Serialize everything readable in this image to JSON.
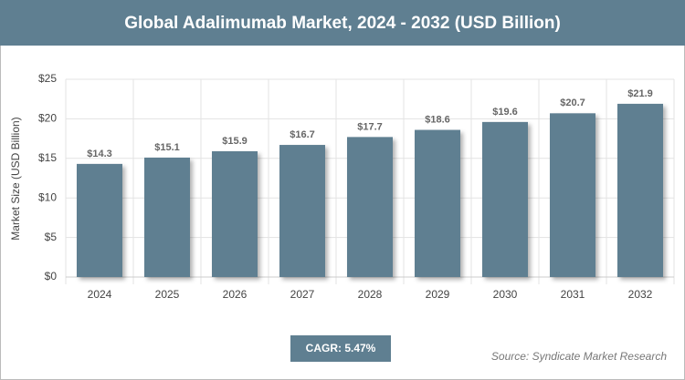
{
  "chart_data": {
    "type": "bar",
    "title": "Global Adalimumab Market, 2024 - 2032 (USD Billion)",
    "y_label": "Market Size (USD Billion)",
    "categories": [
      "2024",
      "2025",
      "2026",
      "2027",
      "2028",
      "2029",
      "2030",
      "2031",
      "2032"
    ],
    "values": [
      14.3,
      15.1,
      15.9,
      16.7,
      17.7,
      18.6,
      19.6,
      20.7,
      21.9
    ],
    "value_labels": [
      "$14.3",
      "$15.1",
      "$15.9",
      "$16.7",
      "$17.7",
      "$18.6",
      "$19.6",
      "$20.7",
      "$21.9"
    ],
    "color": "#5f7f91",
    "ylim": [
      0,
      25
    ],
    "yticks": [
      {
        "value": 0,
        "label": "$0"
      },
      {
        "value": 5,
        "label": "$5"
      },
      {
        "value": 10,
        "label": "$10"
      },
      {
        "value": 15,
        "label": "$15"
      },
      {
        "value": 20,
        "label": "$20"
      },
      {
        "value": 25,
        "label": "$25"
      }
    ],
    "grid": true,
    "cagr": "CAGR: 5.47%",
    "source": "Source: Syndicate Market Research"
  }
}
